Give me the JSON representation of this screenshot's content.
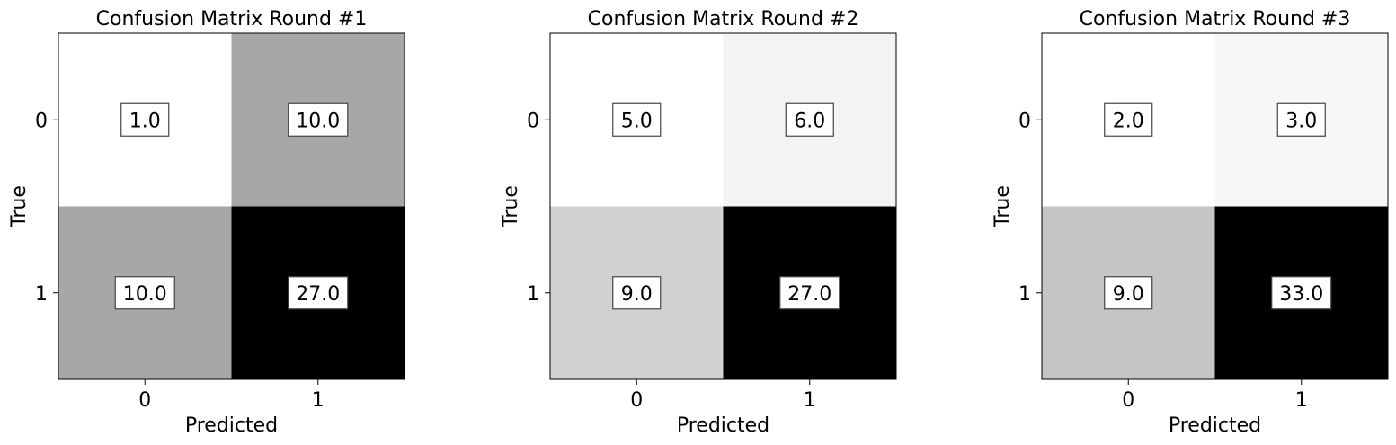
{
  "chart_data": [
    {
      "type": "heatmap",
      "title": "Confusion Matrix Round #1",
      "xlabel": "Predicted",
      "ylabel": "True",
      "x_ticks": [
        "0",
        "1"
      ],
      "y_ticks": [
        "0",
        "1"
      ],
      "values": [
        [
          1.0,
          10.0
        ],
        [
          10.0,
          27.0
        ]
      ],
      "cell_labels": [
        [
          "1.0",
          "10.0"
        ],
        [
          "10.0",
          "27.0"
        ]
      ],
      "colormap": "gray_r"
    },
    {
      "type": "heatmap",
      "title": "Confusion Matrix Round #2",
      "xlabel": "Predicted",
      "ylabel": "True",
      "x_ticks": [
        "0",
        "1"
      ],
      "y_ticks": [
        "0",
        "1"
      ],
      "values": [
        [
          5.0,
          6.0
        ],
        [
          9.0,
          27.0
        ]
      ],
      "cell_labels": [
        [
          "5.0",
          "6.0"
        ],
        [
          "9.0",
          "27.0"
        ]
      ],
      "colormap": "gray_r"
    },
    {
      "type": "heatmap",
      "title": "Confusion Matrix Round #3",
      "xlabel": "Predicted",
      "ylabel": "True",
      "x_ticks": [
        "0",
        "1"
      ],
      "y_ticks": [
        "0",
        "1"
      ],
      "values": [
        [
          2.0,
          3.0
        ],
        [
          9.0,
          33.0
        ]
      ],
      "cell_labels": [
        [
          "2.0",
          "3.0"
        ],
        [
          "9.0",
          "33.0"
        ]
      ],
      "colormap": "gray_r"
    }
  ]
}
